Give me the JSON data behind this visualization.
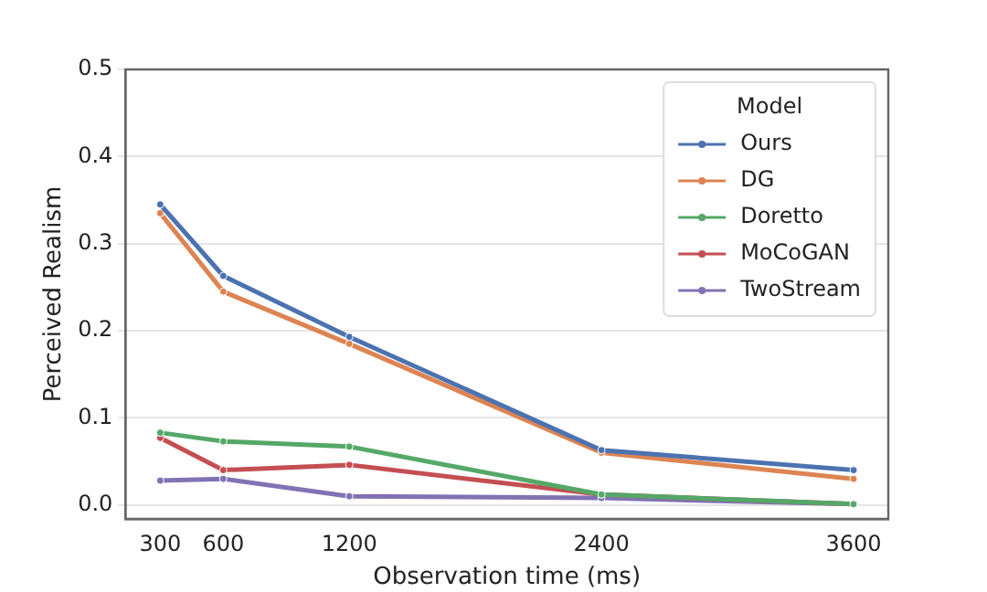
{
  "chart_data": {
    "type": "line",
    "xlabel": "Observation time (ms)",
    "ylabel": "Perceived Realism",
    "legend_title": "Model",
    "x": [
      300,
      600,
      1200,
      2400,
      3600
    ],
    "series": [
      {
        "name": "Ours",
        "color": "#4c72b0",
        "values": [
          0.345,
          0.263,
          0.193,
          0.063,
          0.04
        ]
      },
      {
        "name": "DG",
        "color": "#dd8452",
        "values": [
          0.335,
          0.245,
          0.185,
          0.06,
          0.03
        ]
      },
      {
        "name": "Doretto",
        "color": "#55a868",
        "values": [
          0.083,
          0.073,
          0.067,
          0.012,
          0.001
        ]
      },
      {
        "name": "MoCoGAN",
        "color": "#c44e52",
        "values": [
          0.077,
          0.04,
          0.046,
          0.012,
          0.001
        ]
      },
      {
        "name": "TwoStream",
        "color": "#8172b3",
        "values": [
          0.028,
          0.03,
          0.01,
          0.008,
          0.001
        ]
      }
    ],
    "xlim": [
      135,
      3765
    ],
    "xticks": [
      300,
      600,
      1200,
      2400,
      3600
    ],
    "ylim": [
      -0.016,
      0.5
    ],
    "yticks": [
      {
        "value": 0,
        "label": "0.0"
      },
      {
        "value": 0.1,
        "label": "0.1"
      },
      {
        "value": 0.2,
        "label": "0.2"
      },
      {
        "value": 0.3,
        "label": "0.3"
      },
      {
        "value": 0.4,
        "label": "0.4"
      },
      {
        "value": 0.5,
        "label": "0.5"
      }
    ],
    "grid": "y",
    "legend": "top right",
    "marker": "circle",
    "line_style": "solid"
  }
}
